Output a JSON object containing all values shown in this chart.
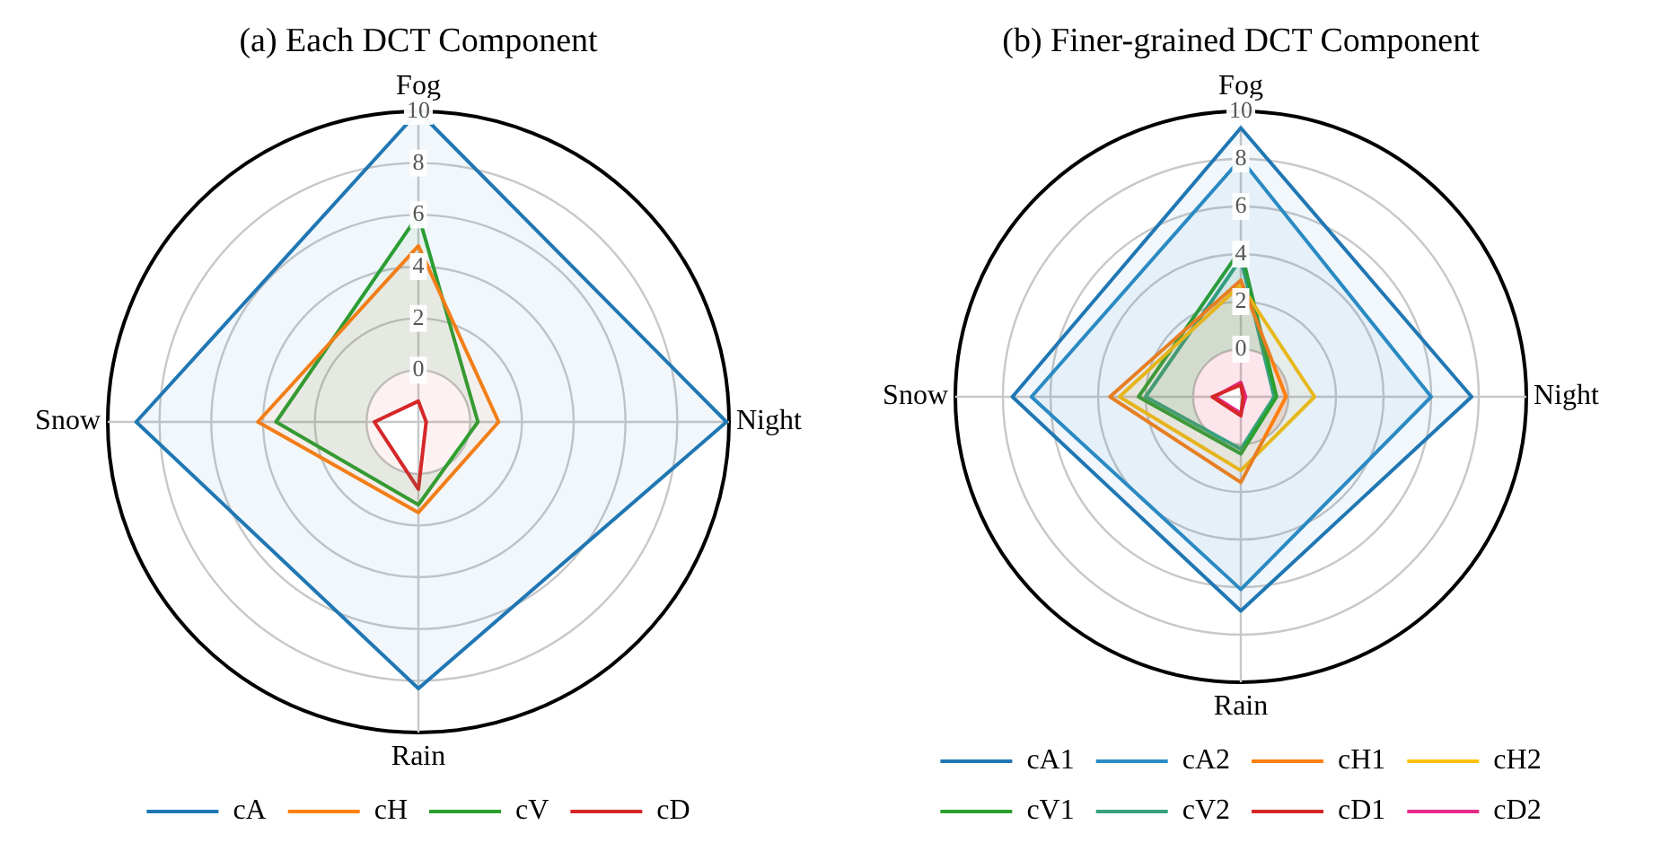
{
  "chart_data": [
    {
      "type": "radar",
      "title": "(a) Each DCT Component",
      "categories": [
        "Fog",
        "Night",
        "Rain",
        "Snow"
      ],
      "ylim": [
        -2,
        10
      ],
      "yticks": [
        0,
        2,
        4,
        6,
        8,
        10
      ],
      "grid": true,
      "legend": "bottom",
      "marker": "none",
      "series": [
        {
          "name": "cA",
          "color": "#1f77b4",
          "values": [
            10,
            9.9,
            8.3,
            8.9
          ]
        },
        {
          "name": "cH",
          "color": "#ff7f0e",
          "values": [
            4.8,
            1.1,
            1.5,
            4.2
          ]
        },
        {
          "name": "cV",
          "color": "#2ca02c",
          "values": [
            6.0,
            0.3,
            1.2,
            3.5
          ]
        },
        {
          "name": "cD",
          "color": "#d62728",
          "values": [
            -1.2,
            -1.7,
            0.6,
            -0.3
          ]
        }
      ]
    },
    {
      "type": "radar",
      "title": "(b) Finer-grained DCT Component",
      "categories": [
        "Fog",
        "Night",
        "Rain",
        "Snow"
      ],
      "ylim": [
        -2,
        10
      ],
      "yticks": [
        0,
        2,
        4,
        6,
        8,
        10
      ],
      "grid": true,
      "legend": "bottom",
      "marker": "none",
      "series": [
        {
          "name": "cA1",
          "color": "#1f77b4",
          "values": [
            9.3,
            7.7,
            7.0,
            7.6
          ]
        },
        {
          "name": "cA2",
          "color": "#2b8cc4",
          "values": [
            8.0,
            6.0,
            6.1,
            6.8
          ]
        },
        {
          "name": "cH1",
          "color": "#ff7f0e",
          "values": [
            2.9,
            -0.1,
            1.6,
            3.5
          ]
        },
        {
          "name": "cH2",
          "color": "#ffc107",
          "values": [
            2.7,
            1.1,
            1.1,
            3.1
          ]
        },
        {
          "name": "cV1",
          "color": "#2ca02c",
          "values": [
            4.2,
            -0.5,
            0.4,
            2.3
          ]
        },
        {
          "name": "cV2",
          "color": "#35a37f",
          "values": [
            3.8,
            -0.6,
            0.2,
            2.0
          ]
        },
        {
          "name": "cD1",
          "color": "#d62728",
          "values": [
            -1.5,
            -1.9,
            -1.2,
            -0.8
          ]
        },
        {
          "name": "cD2",
          "color": "#e7298a",
          "values": [
            -1.4,
            -1.8,
            -1.3,
            -0.9
          ]
        }
      ]
    }
  ]
}
